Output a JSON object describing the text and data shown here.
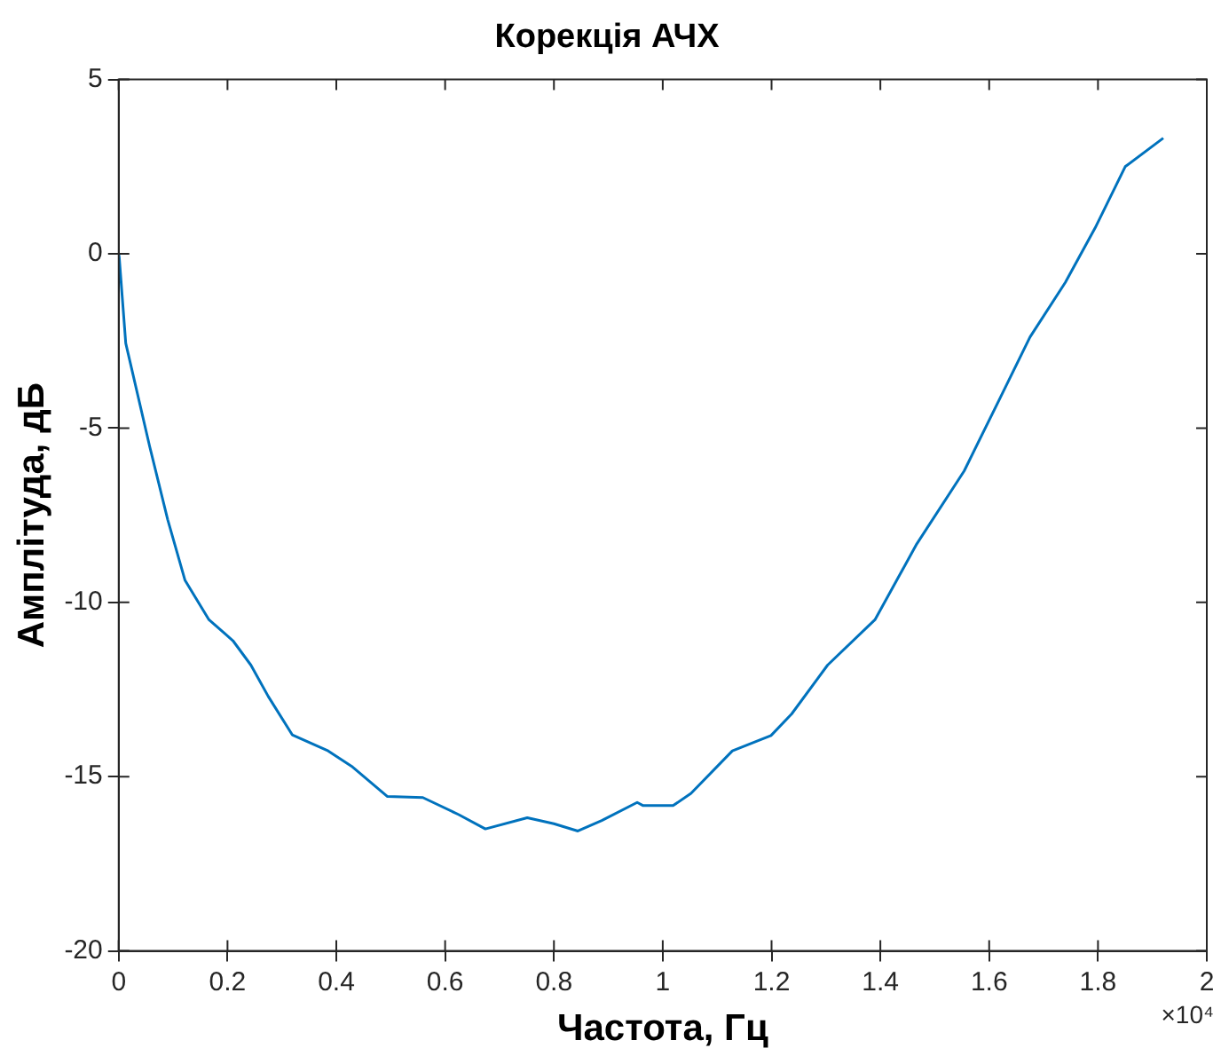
{
  "chart_data": {
    "type": "line",
    "title": "Корекція АЧХ",
    "xlabel": "Частота, Гц",
    "ylabel": "Амплітуда, дБ",
    "annotations": [
      "×10⁴"
    ],
    "x": [
      0,
      0.001,
      0.013,
      0.057,
      0.09,
      0.122,
      0.166,
      0.21,
      0.243,
      0.275,
      0.319,
      0.385,
      0.428,
      0.494,
      0.559,
      0.625,
      0.674,
      0.751,
      0.8,
      0.844,
      0.888,
      0.953,
      0.964,
      1.019,
      1.052,
      1.128,
      1.199,
      1.237,
      1.303,
      1.39,
      1.467,
      1.554,
      1.62,
      1.675,
      1.74,
      1.795,
      1.85,
      1.92
    ],
    "series": [
      {
        "color": "#0072bd",
        "values": [
          0,
          -0.1,
          -2.57,
          -5.53,
          -7.62,
          -9.37,
          -10.5,
          -11.1,
          -11.8,
          -12.7,
          -13.8,
          -14.26,
          -14.7,
          -15.57,
          -15.6,
          -16.09,
          -16.5,
          -16.18,
          -16.35,
          -16.56,
          -16.26,
          -15.74,
          -15.83,
          -15.83,
          -15.48,
          -14.26,
          -13.82,
          -13.2,
          -11.8,
          -10.5,
          -8.32,
          -6.23,
          -4.14,
          -2.39,
          -0.82,
          0.75,
          2.5,
          3.32
        ]
      }
    ],
    "xlim": [
      0,
      2
    ],
    "xticks": [
      0,
      0.2,
      0.4,
      0.6,
      0.8,
      1,
      1.2,
      1.4,
      1.6,
      1.8,
      2
    ],
    "ylim": [
      -20,
      5
    ],
    "yticks": [
      -20,
      -15,
      -10,
      -5,
      0,
      5
    ],
    "grid": false,
    "legend": false,
    "marker": "none",
    "line_style": "solid"
  }
}
